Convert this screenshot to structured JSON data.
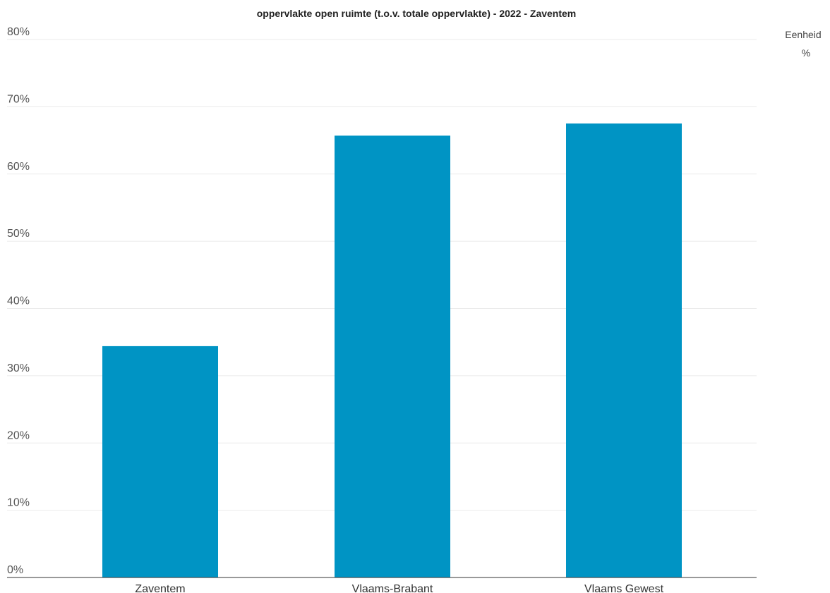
{
  "chart_data": {
    "type": "bar",
    "title": "oppervlakte open ruimte (t.o.v. totale oppervlakte) - 2022 - Zaventem",
    "categories": [
      "Zaventem",
      "Vlaams-Brabant",
      "Vlaams Gewest"
    ],
    "values": [
      34.4,
      65.7,
      67.5
    ],
    "ylim": [
      0,
      80
    ],
    "yticks": [
      "0%",
      "10%",
      "20%",
      "30%",
      "40%",
      "50%",
      "60%",
      "70%",
      "80%"
    ],
    "xlabel": "",
    "ylabel": "",
    "grid": true,
    "legend": {
      "title": "Eenheid",
      "entry": "%",
      "placement": "top-right"
    },
    "bar_color": "#0094c4"
  }
}
